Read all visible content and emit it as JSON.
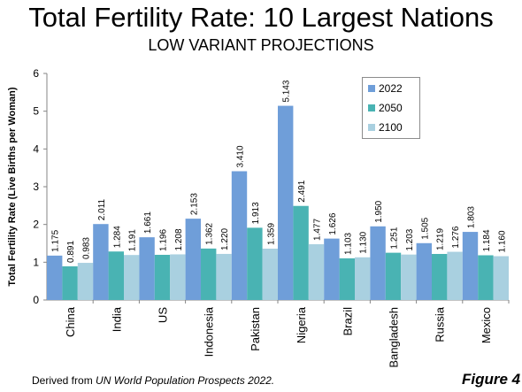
{
  "title": "Total Fertility Rate: 10 Largest Nations",
  "subtitle": "LOW VARIANT PROJECTIONS",
  "footer": {
    "source_prefix": "Derived from ",
    "source_italic": "UN World Population Prospects 2022.",
    "figure_label": "Figure 4"
  },
  "colors": {
    "2022": "#6f9ed9",
    "2050": "#49b3b3",
    "2100": "#a9d0e0"
  },
  "chart_data": {
    "type": "bar",
    "title": "Total Fertility Rate: 10 Largest Nations",
    "subtitle": "LOW VARIANT PROJECTIONS",
    "ylabel": "Total Fertility Rate (Live Births per Woman)",
    "xlabel": "",
    "ylim": [
      0,
      6
    ],
    "yticks": [
      0,
      1,
      2,
      3,
      4,
      5,
      6
    ],
    "grid": false,
    "legend": "top-right",
    "categories": [
      "China",
      "India",
      "US",
      "Indonesia",
      "Pakistan",
      "Nigeria",
      "Brazil",
      "Bangladesh",
      "Russia",
      "Mexico"
    ],
    "series": [
      {
        "name": "2022",
        "values": [
          1.175,
          2.011,
          1.661,
          2.153,
          3.41,
          5.143,
          1.626,
          1.95,
          1.505,
          1.803
        ],
        "labels": [
          "1.175",
          "2.011",
          "1.661",
          "2.153",
          "3.410",
          "5.143",
          "1.626",
          "1.950",
          "1.505",
          "1.803"
        ]
      },
      {
        "name": "2050",
        "values": [
          0.891,
          1.284,
          1.196,
          1.362,
          1.913,
          2.491,
          1.103,
          1.251,
          1.219,
          1.184
        ],
        "labels": [
          "0.891",
          "1.284",
          "1.196",
          "1.362",
          "1.913",
          "2.491",
          "1.103",
          "1.251",
          "1.219",
          "1.184"
        ]
      },
      {
        "name": "2100",
        "values": [
          0.983,
          1.191,
          1.208,
          1.22,
          1.359,
          1.477,
          1.13,
          1.203,
          1.276,
          1.16
        ],
        "labels": [
          "0.983",
          "1.191",
          "1.208",
          "1.220",
          "1.359",
          "1.477",
          "1.130",
          "1.203",
          "1.276",
          "1.160"
        ]
      }
    ]
  }
}
